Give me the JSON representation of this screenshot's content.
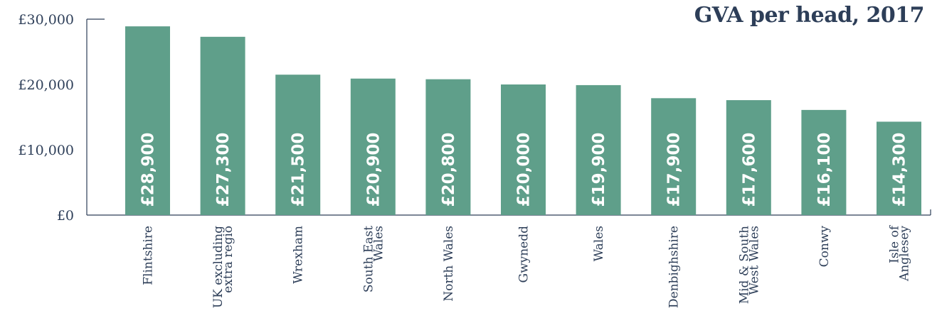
{
  "chart_data": {
    "type": "bar",
    "title": "GVA per head, 2017",
    "xlabel": "",
    "ylabel": "",
    "ylim": [
      0,
      30000
    ],
    "y_ticks": [
      {
        "value": 0,
        "label": "£0"
      },
      {
        "value": 10000,
        "label": "£10,000"
      },
      {
        "value": 20000,
        "label": "£20,000"
      },
      {
        "value": 30000,
        "label": "£30,000"
      }
    ],
    "categories": [
      [
        "Flintshire"
      ],
      [
        "UK excluding",
        "extra regio"
      ],
      [
        "Wrexham"
      ],
      [
        "South East",
        "Wales"
      ],
      [
        "North Wales"
      ],
      [
        "Gwynedd"
      ],
      [
        "Wales"
      ],
      [
        "Denbighshire"
      ],
      [
        "Mid & South",
        "West Wales"
      ],
      [
        "Conwy"
      ],
      [
        "Isle of",
        "Anglesey"
      ]
    ],
    "values": [
      28900,
      27300,
      21500,
      20900,
      20800,
      20000,
      19900,
      17900,
      17600,
      16100,
      14300
    ],
    "value_labels": [
      "£28,900",
      "£27,300",
      "£21,500",
      "£20,900",
      "£20,800",
      "£20,000",
      "£19,900",
      "£17,900",
      "£17,600",
      "£16,100",
      "£14,300"
    ],
    "bar_color": "#5f9f8a",
    "text_color": "#2d3e58",
    "grid": false
  }
}
